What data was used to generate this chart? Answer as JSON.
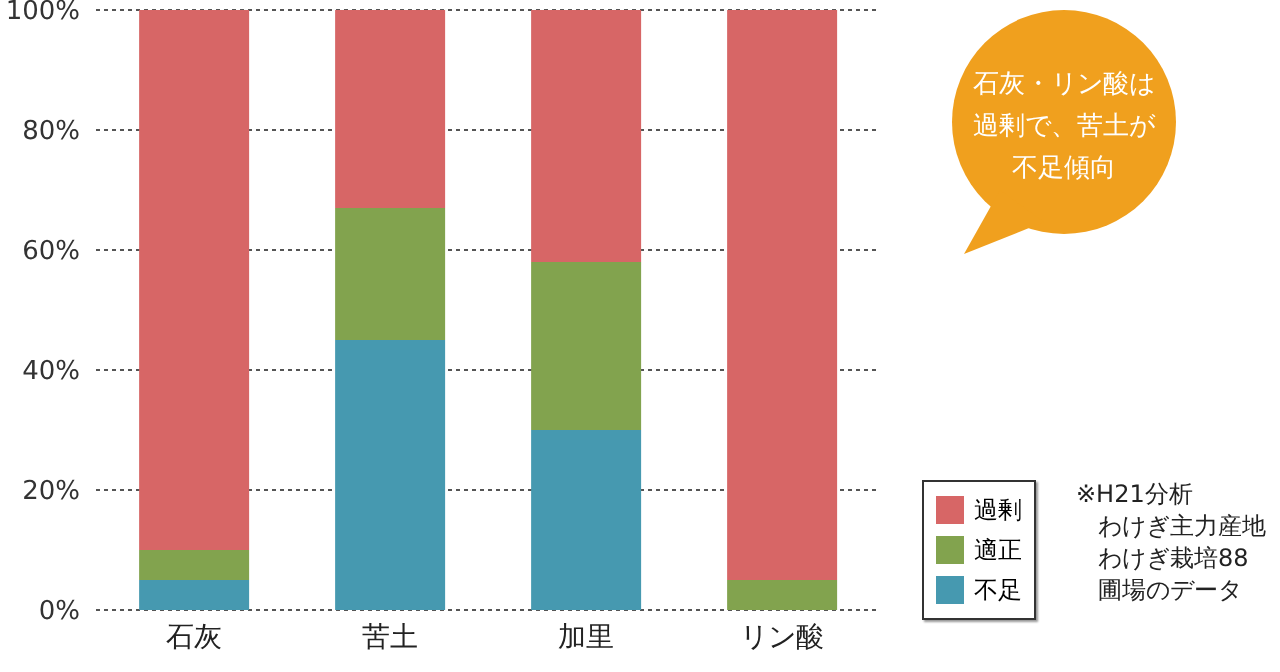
{
  "chart_data": {
    "type": "bar",
    "stacked": true,
    "categories": [
      "石灰",
      "苦土",
      "加里",
      "リン酸"
    ],
    "series": [
      {
        "name": "不足",
        "color": "#4699b0",
        "values": [
          5,
          45,
          30,
          0
        ]
      },
      {
        "name": "適正",
        "color": "#82a34e",
        "values": [
          5,
          22,
          28,
          5
        ]
      },
      {
        "name": "過剰",
        "color": "#d76666",
        "values": [
          90,
          33,
          42,
          95
        ]
      }
    ],
    "ylim": [
      0,
      100
    ],
    "yticks": [
      {
        "value": 0,
        "label": "0%"
      },
      {
        "value": 20,
        "label": "20%"
      },
      {
        "value": 40,
        "label": "40%"
      },
      {
        "value": 60,
        "label": "60%"
      },
      {
        "value": 80,
        "label": "80%"
      },
      {
        "value": 100,
        "label": "100%"
      }
    ],
    "grid": "y",
    "legend": "bottom right",
    "annotations": [
      "石灰・リン酸は過剰で、苦土が不足傾向",
      "※H21分析",
      "わけぎ主力産地",
      "わけぎ栽培88",
      "圃場のデータ"
    ]
  }
}
